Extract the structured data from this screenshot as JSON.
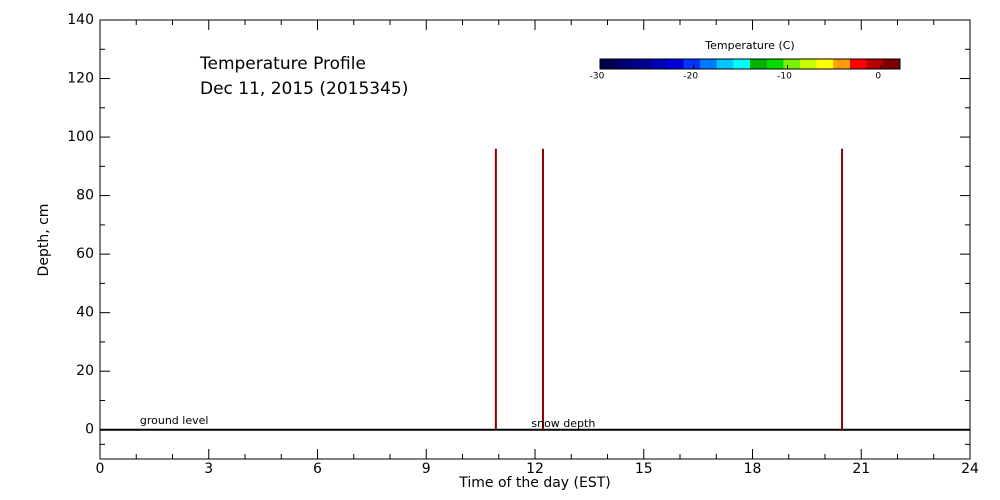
{
  "chart_data": {
    "type": "profile",
    "title": "Temperature Profile",
    "subtitle": "Dec 11, 2015 (2015345)",
    "xlabel": "Time of the day (EST)",
    "ylabel": "Depth, cm",
    "xlim": [
      0,
      24
    ],
    "xticks": [
      0,
      3,
      6,
      9,
      12,
      15,
      18,
      21,
      24
    ],
    "ylim": [
      -10,
      140
    ],
    "yticks": [
      0,
      20,
      40,
      60,
      80,
      100,
      120,
      140
    ],
    "x": [
      10.92,
      12.22,
      20.47
    ],
    "values": [
      96,
      96,
      96
    ],
    "color": "#8b0000",
    "ground_level": 0,
    "annotations": [
      {
        "text": "ground level",
        "x": 1.1,
        "y": 3
      },
      {
        "text": "snow depth",
        "x": 11.9,
        "y": 2
      }
    ],
    "colorbar": {
      "label": "Temperature (C)",
      "clim": [
        -30,
        2
      ],
      "ticks": [
        -30,
        -20,
        -10,
        0
      ],
      "colors": [
        "#000050",
        "#000070",
        "#00008c",
        "#0000b4",
        "#0000dc",
        "#0032ff",
        "#0078ff",
        "#00c8ff",
        "#00ffff",
        "#00b400",
        "#00dc00",
        "#78f000",
        "#c8ff00",
        "#ffff00",
        "#ffa000",
        "#ff0000",
        "#b40000",
        "#780000"
      ]
    }
  }
}
